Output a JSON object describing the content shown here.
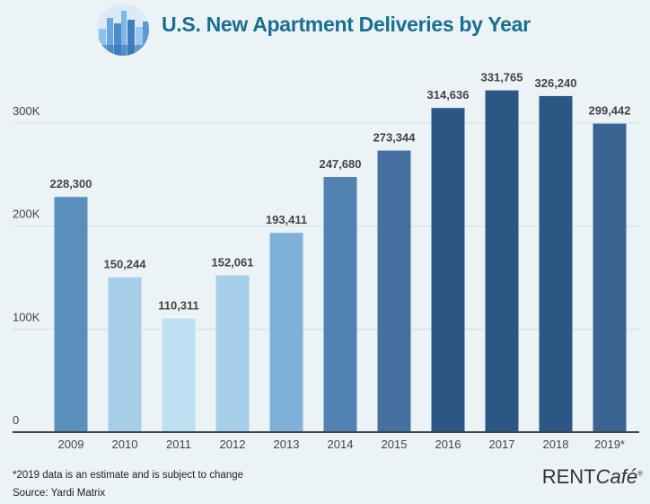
{
  "chart_data": {
    "type": "bar",
    "title": "U.S. New Apartment Deliveries by Year",
    "categories": [
      "2009",
      "2010",
      "2011",
      "2012",
      "2013",
      "2014",
      "2015",
      "2016",
      "2017",
      "2018",
      "2019*"
    ],
    "values": [
      228300,
      150244,
      110311,
      152061,
      193411,
      247680,
      273344,
      314636,
      331765,
      326240,
      299442
    ],
    "data_labels": [
      "228,300",
      "150,244",
      "110,311",
      "152,061",
      "193,411",
      "247,680",
      "273,344",
      "314,636",
      "331,765",
      "326,240",
      "299,442"
    ],
    "bar_colors": [
      "#5b8fbb",
      "#a5cfe8",
      "#bde0f2",
      "#a5cfe8",
      "#7fb0d8",
      "#5282b1",
      "#45709f",
      "#2c5784",
      "#2c5784",
      "#2c5784",
      "#3a6593"
    ],
    "yticks": [
      0,
      100000,
      200000,
      300000
    ],
    "ytick_labels": [
      "0",
      "100K",
      "200K",
      "300K"
    ],
    "ylim": [
      0,
      300000
    ],
    "grid": true,
    "xlabel": "",
    "ylabel": ""
  },
  "footer": {
    "note": "*2019 data is an estimate and is subject to change",
    "source": "Source: Yardi Matrix",
    "brand": "RENTCafé"
  }
}
